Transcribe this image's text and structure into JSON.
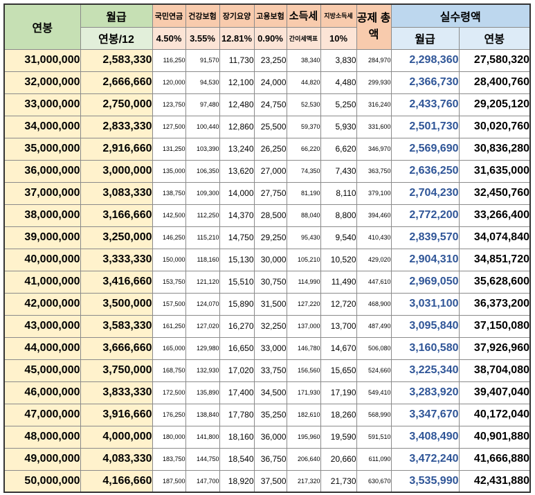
{
  "headers": {
    "annual": "연봉",
    "monthly": "월급",
    "monthly_sub": "연봉/12",
    "pension": "국민연금",
    "health": "건강보험",
    "longterm": "장기요양",
    "employment": "고용보험",
    "income_tax": "소득세",
    "local_tax": "지방소득세",
    "total_deduction": "공제 총액",
    "net": "실수령액",
    "net_monthly": "월급",
    "net_annual": "연봉"
  },
  "rates": {
    "pension": "4.50%",
    "health": "3.55%",
    "longterm": "12.81%",
    "employment": "0.90%",
    "income_tax": "간이세액표",
    "local_tax": "10%"
  },
  "rows": [
    {
      "annual": "31,000,000",
      "monthly": "2,583,330",
      "pension": "116,250",
      "health": "91,570",
      "longterm": "11,730",
      "employment": "23,250",
      "income_tax": "38,340",
      "local_tax": "3,830",
      "total": "284,970",
      "net_monthly": "2,298,360",
      "net_annual": "27,580,320"
    },
    {
      "annual": "32,000,000",
      "monthly": "2,666,660",
      "pension": "120,000",
      "health": "94,530",
      "longterm": "12,100",
      "employment": "24,000",
      "income_tax": "44,820",
      "local_tax": "4,480",
      "total": "299,930",
      "net_monthly": "2,366,730",
      "net_annual": "28,400,760"
    },
    {
      "annual": "33,000,000",
      "monthly": "2,750,000",
      "pension": "123,750",
      "health": "97,480",
      "longterm": "12,480",
      "employment": "24,750",
      "income_tax": "52,530",
      "local_tax": "5,250",
      "total": "316,240",
      "net_monthly": "2,433,760",
      "net_annual": "29,205,120"
    },
    {
      "annual": "34,000,000",
      "monthly": "2,833,330",
      "pension": "127,500",
      "health": "100,440",
      "longterm": "12,860",
      "employment": "25,500",
      "income_tax": "59,370",
      "local_tax": "5,930",
      "total": "331,600",
      "net_monthly": "2,501,730",
      "net_annual": "30,020,760"
    },
    {
      "annual": "35,000,000",
      "monthly": "2,916,660",
      "pension": "131,250",
      "health": "103,390",
      "longterm": "13,240",
      "employment": "26,250",
      "income_tax": "66,220",
      "local_tax": "6,620",
      "total": "346,970",
      "net_monthly": "2,569,690",
      "net_annual": "30,836,280"
    },
    {
      "annual": "36,000,000",
      "monthly": "3,000,000",
      "pension": "135,000",
      "health": "106,350",
      "longterm": "13,620",
      "employment": "27,000",
      "income_tax": "74,350",
      "local_tax": "7,430",
      "total": "363,750",
      "net_monthly": "2,636,250",
      "net_annual": "31,635,000"
    },
    {
      "annual": "37,000,000",
      "monthly": "3,083,330",
      "pension": "138,750",
      "health": "109,300",
      "longterm": "14,000",
      "employment": "27,750",
      "income_tax": "81,190",
      "local_tax": "8,110",
      "total": "379,100",
      "net_monthly": "2,704,230",
      "net_annual": "32,450,760"
    },
    {
      "annual": "38,000,000",
      "monthly": "3,166,660",
      "pension": "142,500",
      "health": "112,250",
      "longterm": "14,370",
      "employment": "28,500",
      "income_tax": "88,040",
      "local_tax": "8,800",
      "total": "394,460",
      "net_monthly": "2,772,200",
      "net_annual": "33,266,400"
    },
    {
      "annual": "39,000,000",
      "monthly": "3,250,000",
      "pension": "146,250",
      "health": "115,210",
      "longterm": "14,750",
      "employment": "29,250",
      "income_tax": "95,430",
      "local_tax": "9,540",
      "total": "410,430",
      "net_monthly": "2,839,570",
      "net_annual": "34,074,840"
    },
    {
      "annual": "40,000,000",
      "monthly": "3,333,330",
      "pension": "150,000",
      "health": "118,160",
      "longterm": "15,130",
      "employment": "30,000",
      "income_tax": "105,210",
      "local_tax": "10,520",
      "total": "429,020",
      "net_monthly": "2,904,310",
      "net_annual": "34,851,720"
    },
    {
      "annual": "41,000,000",
      "monthly": "3,416,660",
      "pension": "153,750",
      "health": "121,120",
      "longterm": "15,510",
      "employment": "30,750",
      "income_tax": "114,990",
      "local_tax": "11,490",
      "total": "447,610",
      "net_monthly": "2,969,050",
      "net_annual": "35,628,600"
    },
    {
      "annual": "42,000,000",
      "monthly": "3,500,000",
      "pension": "157,500",
      "health": "124,070",
      "longterm": "15,890",
      "employment": "31,500",
      "income_tax": "127,220",
      "local_tax": "12,720",
      "total": "468,900",
      "net_monthly": "3,031,100",
      "net_annual": "36,373,200"
    },
    {
      "annual": "43,000,000",
      "monthly": "3,583,330",
      "pension": "161,250",
      "health": "127,020",
      "longterm": "16,270",
      "employment": "32,250",
      "income_tax": "137,000",
      "local_tax": "13,700",
      "total": "487,490",
      "net_monthly": "3,095,840",
      "net_annual": "37,150,080"
    },
    {
      "annual": "44,000,000",
      "monthly": "3,666,660",
      "pension": "165,000",
      "health": "129,980",
      "longterm": "16,650",
      "employment": "33,000",
      "income_tax": "146,780",
      "local_tax": "14,670",
      "total": "506,080",
      "net_monthly": "3,160,580",
      "net_annual": "37,926,960"
    },
    {
      "annual": "45,000,000",
      "monthly": "3,750,000",
      "pension": "168,750",
      "health": "132,930",
      "longterm": "17,020",
      "employment": "33,750",
      "income_tax": "156,560",
      "local_tax": "15,650",
      "total": "524,660",
      "net_monthly": "3,225,340",
      "net_annual": "38,704,080"
    },
    {
      "annual": "46,000,000",
      "monthly": "3,833,330",
      "pension": "172,500",
      "health": "135,890",
      "longterm": "17,400",
      "employment": "34,500",
      "income_tax": "171,930",
      "local_tax": "17,190",
      "total": "549,410",
      "net_monthly": "3,283,920",
      "net_annual": "39,407,040"
    },
    {
      "annual": "47,000,000",
      "monthly": "3,916,660",
      "pension": "176,250",
      "health": "138,840",
      "longterm": "17,780",
      "employment": "35,250",
      "income_tax": "182,610",
      "local_tax": "18,260",
      "total": "568,990",
      "net_monthly": "3,347,670",
      "net_annual": "40,172,040"
    },
    {
      "annual": "48,000,000",
      "monthly": "4,000,000",
      "pension": "180,000",
      "health": "141,800",
      "longterm": "18,160",
      "employment": "36,000",
      "income_tax": "195,960",
      "local_tax": "19,590",
      "total": "591,510",
      "net_monthly": "3,408,490",
      "net_annual": "40,901,880"
    },
    {
      "annual": "49,000,000",
      "monthly": "4,083,330",
      "pension": "183,750",
      "health": "144,750",
      "longterm": "18,540",
      "employment": "36,750",
      "income_tax": "206,640",
      "local_tax": "20,660",
      "total": "611,090",
      "net_monthly": "3,472,240",
      "net_annual": "41,666,880"
    },
    {
      "annual": "50,000,000",
      "monthly": "4,166,660",
      "pension": "187,500",
      "health": "147,700",
      "longterm": "18,920",
      "employment": "37,500",
      "income_tax": "217,320",
      "local_tax": "21,730",
      "total": "630,670",
      "net_monthly": "3,535,990",
      "net_annual": "42,431,880"
    }
  ],
  "colors": {
    "header_green": "#c6e0b4",
    "header_green_light": "#e2efda",
    "header_orange": "#f8cbad",
    "header_orange_light": "#fce4d6",
    "header_blue": "#bdd7ee",
    "header_blue_light": "#ddebf7",
    "cell_yellow": "#fff2cc",
    "net_monthly_text": "#2f5597"
  }
}
